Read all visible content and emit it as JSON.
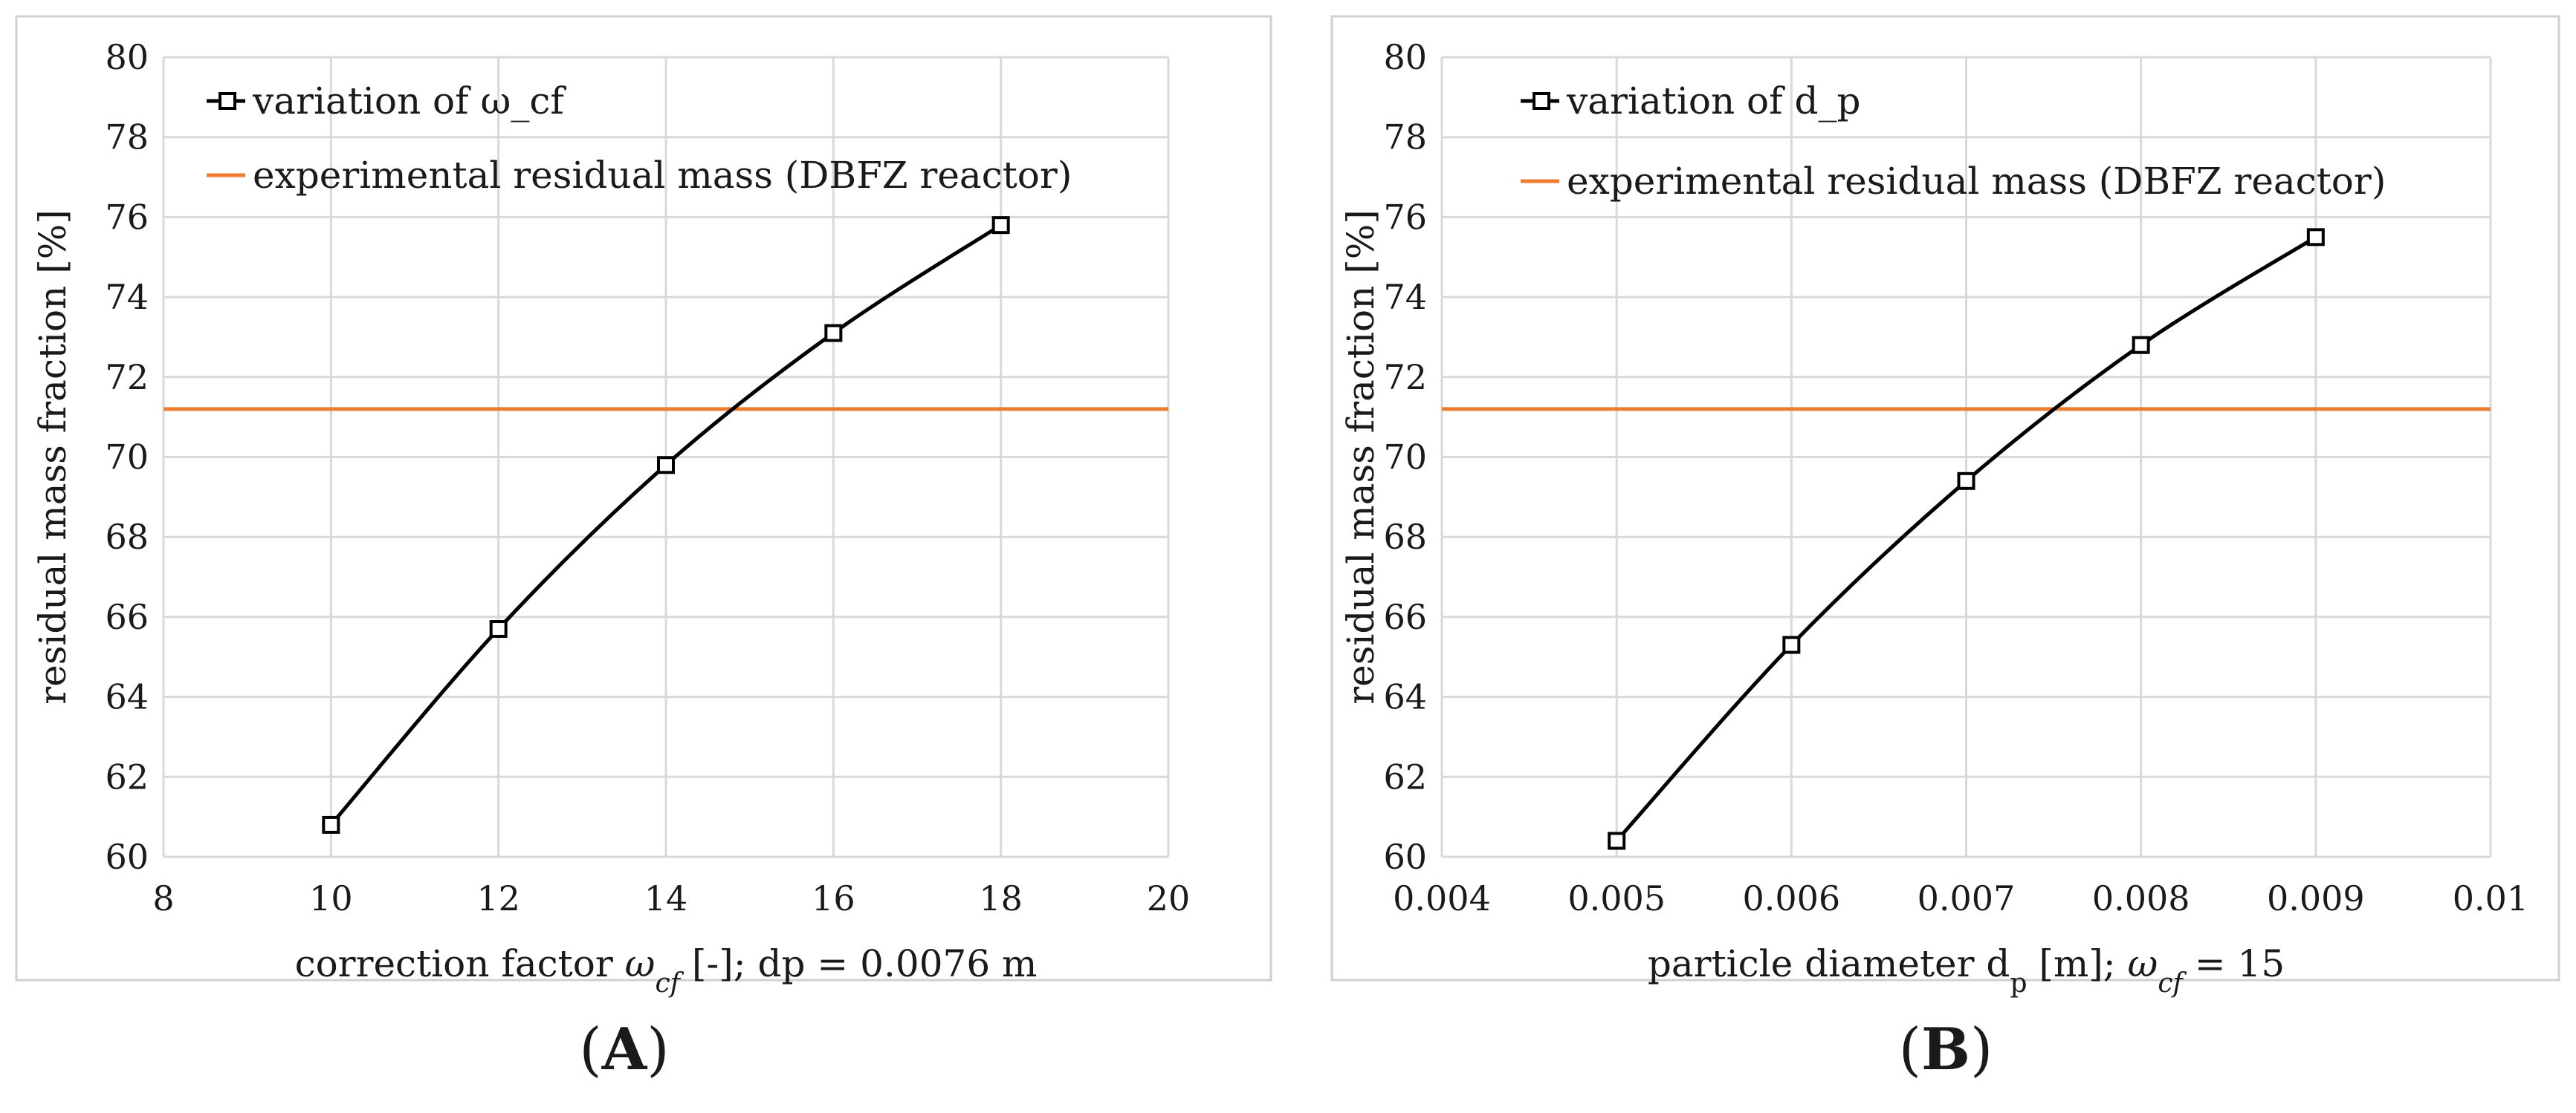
{
  "colors": {
    "series": "#000000",
    "reference": "#ED7D31",
    "grid": "#d9d9d9",
    "frame": "#d0d0d0"
  },
  "chart_data": [
    {
      "type": "line",
      "panel_label": "A",
      "xlim": [
        8,
        20
      ],
      "ylim": [
        60,
        80
      ],
      "xticks": [
        8,
        10,
        12,
        14,
        16,
        18,
        20
      ],
      "yticks": [
        60,
        62,
        64,
        66,
        68,
        70,
        72,
        74,
        76,
        78,
        80
      ],
      "xlabel_parts": {
        "pre": "correction factor ",
        "sym": "ω",
        "sub": "cf",
        "post": " [-]; dp = 0.0076 m"
      },
      "ylabel": "residual mass fraction [%]",
      "series": [
        {
          "name": "variation of ω_cf",
          "x": [
            10,
            12,
            14,
            16,
            18
          ],
          "y": [
            60.8,
            65.7,
            69.8,
            73.1,
            75.8
          ]
        }
      ],
      "reference": {
        "name": "experimental residual mass (DBFZ reactor)",
        "y": 71.2
      },
      "legend": "top-left",
      "grid": true
    },
    {
      "type": "line",
      "panel_label": "B",
      "xlim": [
        0.004,
        0.01
      ],
      "ylim": [
        60,
        80
      ],
      "xticks": [
        0.004,
        0.005,
        0.006,
        0.007,
        0.008,
        0.009,
        0.01
      ],
      "yticks": [
        60,
        62,
        64,
        66,
        68,
        70,
        72,
        74,
        76,
        78,
        80
      ],
      "xlabel_parts": {
        "pre": "particle diameter d",
        "pre_sub": "p",
        "mid": " [m]; ",
        "sym": "ω",
        "sub": "cf",
        "post": " = 15"
      },
      "ylabel": "residual mass fraction [%]",
      "series": [
        {
          "name": "variation of d_p",
          "x": [
            0.005,
            0.006,
            0.007,
            0.008,
            0.009
          ],
          "y": [
            60.4,
            65.3,
            69.4,
            72.8,
            75.5
          ]
        }
      ],
      "reference": {
        "name": "experimental residual mass (DBFZ reactor)",
        "y": 71.2
      },
      "legend": "top-left",
      "grid": true
    }
  ]
}
